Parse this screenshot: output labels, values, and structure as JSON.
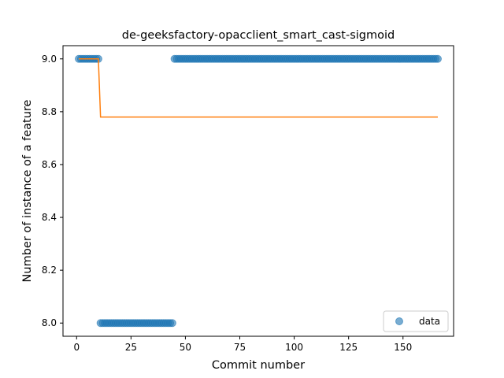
{
  "chart_data": {
    "type": "scatter",
    "title": "de-geeksfactory-opacclient_smart_cast-sigmoid",
    "xlabel": "Commit number",
    "ylabel": "Number of instance of a feature",
    "xlim": [
      -6.25,
      173.25
    ],
    "ylim": [
      7.95,
      9.05
    ],
    "xticks": [
      0,
      25,
      50,
      75,
      100,
      125,
      150
    ],
    "yticks": [
      8.0,
      8.2,
      8.4,
      8.6,
      8.8,
      9.0
    ],
    "ytick_labels": [
      "8.0",
      "8.2",
      "8.4",
      "8.6",
      "8.8",
      "9.0"
    ],
    "legend": {
      "position": "lower-right",
      "entries": [
        "data"
      ]
    },
    "grid": false,
    "series": [
      {
        "name": "data",
        "kind": "scatter",
        "color": "#1f77b4",
        "segments": [
          {
            "x_start": 1,
            "x_end": 10,
            "y": 9.0
          },
          {
            "x_start": 11,
            "x_end": 44,
            "y": 8.0
          },
          {
            "x_start": 45,
            "x_end": 166,
            "y": 9.0
          }
        ]
      },
      {
        "kind": "line",
        "color": "#ff7f0e",
        "points": [
          [
            1,
            9.0
          ],
          [
            10,
            9.0
          ],
          [
            11,
            8.78
          ],
          [
            166,
            8.78
          ]
        ]
      }
    ]
  }
}
